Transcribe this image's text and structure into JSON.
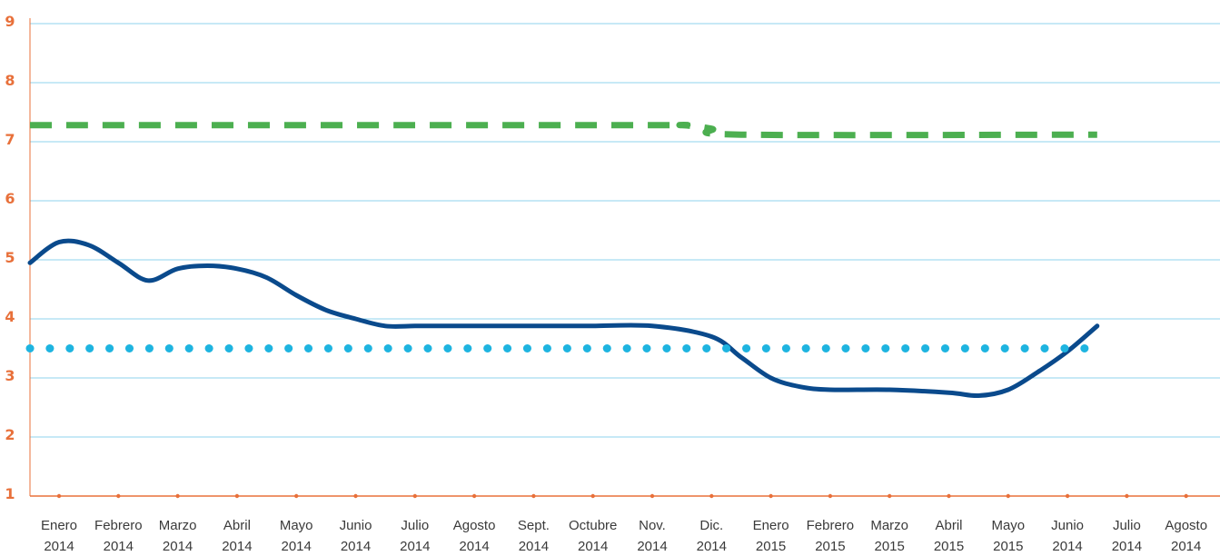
{
  "chart_data": {
    "type": "line",
    "categories": [
      [
        "Enero",
        "2014"
      ],
      [
        "Febrero",
        "2014"
      ],
      [
        "Marzo",
        "2014"
      ],
      [
        "Abril",
        "2014"
      ],
      [
        "Mayo",
        "2014"
      ],
      [
        "Junio",
        "2014"
      ],
      [
        "Julio",
        "2014"
      ],
      [
        "Agosto",
        "2014"
      ],
      [
        "Sept.",
        "2014"
      ],
      [
        "Octubre",
        "2014"
      ],
      [
        "Nov.",
        "2014"
      ],
      [
        "Dic.",
        "2014"
      ],
      [
        "Enero",
        "2015"
      ],
      [
        "Febrero",
        "2015"
      ],
      [
        "Marzo",
        "2015"
      ],
      [
        "Abril",
        "2015"
      ],
      [
        "Mayo",
        "2015"
      ],
      [
        "Junio",
        "2014"
      ],
      [
        "Julio",
        "2014"
      ],
      [
        "Agosto",
        "2014"
      ]
    ],
    "ylim": [
      1,
      9
    ],
    "yticks": [
      "1",
      "2",
      "3",
      "4",
      "5",
      "6",
      "7",
      "8",
      "9"
    ],
    "grid": true,
    "series": [
      {
        "style": "solid",
        "color": "#0a4a8c",
        "values": [
          4.95,
          5.3,
          5.25,
          4.95,
          4.65,
          4.85,
          4.9,
          4.85,
          4.7,
          4.4,
          4.15,
          4.0,
          3.88,
          3.88,
          3.88,
          3.88,
          3.88,
          3.88,
          3.88,
          3.88,
          3.88,
          3.7,
          3.35,
          3.0,
          2.85,
          2.8,
          2.8,
          2.75,
          2.7,
          2.8,
          3.1,
          3.45,
          3.88
        ],
        "x": [
          -0.5,
          0.0,
          0.5,
          1.0,
          1.5,
          2.0,
          2.5,
          3.0,
          3.5,
          4.0,
          4.5,
          5.0,
          5.5,
          6.0,
          6.5,
          7.0,
          7.5,
          8.0,
          8.5,
          9.0,
          10.0,
          11.0,
          11.5,
          12.0,
          12.5,
          13.0,
          14.0,
          15.0,
          15.5,
          16.0,
          16.5,
          17.0,
          17.5
        ]
      },
      {
        "style": "dashed",
        "color": "#4caf50",
        "values": [
          7.28,
          7.28,
          7.28,
          7.22,
          7.12,
          7.12
        ],
        "x": [
          -0.5,
          9.5,
          10.5,
          11.0,
          11.5,
          17.5
        ]
      },
      {
        "style": "dotted",
        "color": "#1eb4e0",
        "values": [
          3.5,
          3.5
        ],
        "x": [
          -0.5,
          17.5
        ]
      }
    ]
  },
  "colors": {
    "axis": "#e8703a",
    "grid": "#8fd3ec"
  }
}
